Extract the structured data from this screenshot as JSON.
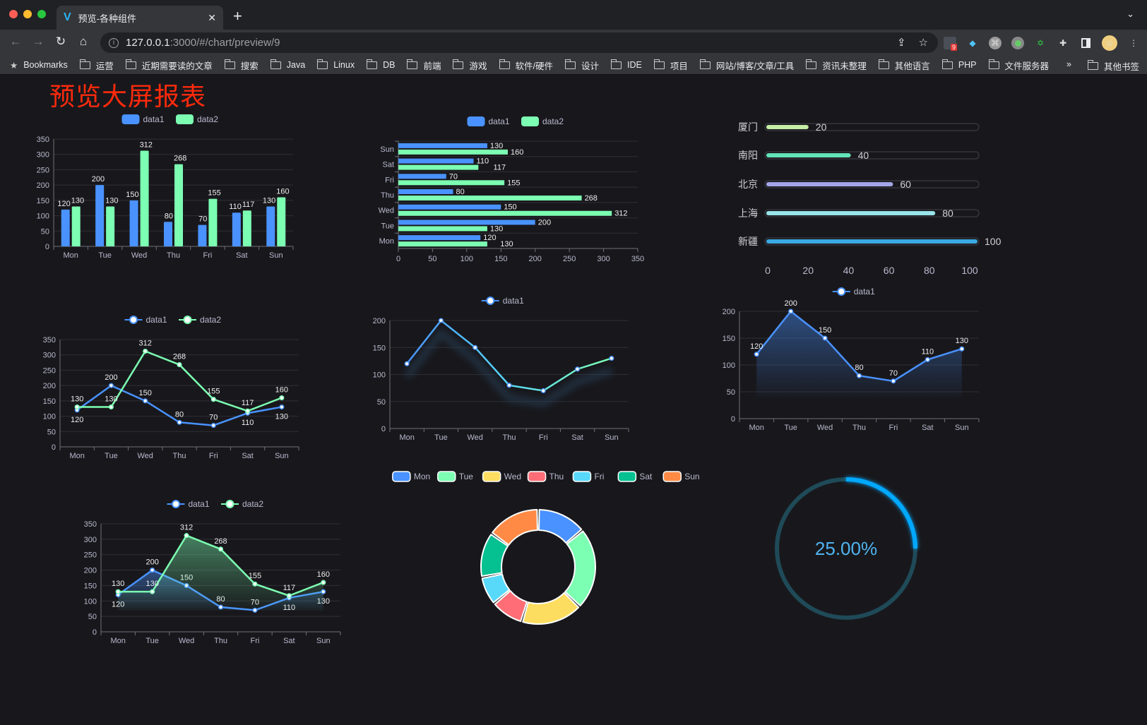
{
  "browser": {
    "tab_title": "预览-各种组件",
    "url_host": "127.0.0.1",
    "url_rest": ":3000/#/chart/preview/9",
    "extension_badge": "9",
    "bookmarks": [
      "Bookmarks",
      "运营",
      "近期需要读的文章",
      "搜索",
      "Java",
      "Linux",
      "DB",
      "前端",
      "游戏",
      "软件/硬件",
      "设计",
      "IDE",
      "项目",
      "网站/博客/文章/工具",
      "资讯未整理",
      "其他语言",
      "PHP",
      "文件服务器"
    ],
    "bookmarks_overflow": "»",
    "other_bookmarks": "其他书签"
  },
  "page": {
    "title": "预览大屏报表"
  },
  "colors": {
    "blue": "#4992ff",
    "green": "#7cffb2",
    "yellow": "#fddd60",
    "red": "#ff6e76",
    "cyan": "#58d9f9",
    "teal": "#05c091",
    "orange": "#ff8a45",
    "title": "#ff2a0c",
    "gauge": "#00a8ff"
  },
  "chart_data": [
    {
      "type": "bar",
      "categories": [
        "Mon",
        "Tue",
        "Wed",
        "Thu",
        "Fri",
        "Sat",
        "Sun"
      ],
      "ylim": [
        0,
        350
      ],
      "ystep": 50,
      "grid": true,
      "legend": "top",
      "series": [
        {
          "name": "data1",
          "values": [
            120,
            200,
            150,
            80,
            70,
            110,
            130
          ]
        },
        {
          "name": "data2",
          "values": [
            130,
            130,
            312,
            268,
            155,
            117,
            160
          ]
        }
      ]
    },
    {
      "type": "bar",
      "orientation": "horizontal",
      "categories": [
        "Mon",
        "Tue",
        "Wed",
        "Thu",
        "Fri",
        "Sat",
        "Sun"
      ],
      "xlim": [
        0,
        350
      ],
      "xstep": 50,
      "grid": true,
      "legend": "top",
      "series": [
        {
          "name": "data1",
          "values": [
            120,
            200,
            150,
            80,
            70,
            110,
            130
          ]
        },
        {
          "name": "data2",
          "values": [
            130,
            130,
            312,
            268,
            155,
            117,
            160
          ]
        }
      ]
    },
    {
      "type": "bar",
      "orientation": "horizontal",
      "style": "progress",
      "categories": [
        "厦门",
        "南阳",
        "北京",
        "上海",
        "新疆"
      ],
      "values": [
        20,
        40,
        60,
        80,
        100
      ],
      "xlim": [
        0,
        100
      ],
      "xticks": [
        0,
        20,
        40,
        60,
        80,
        100
      ],
      "colors": [
        "#c5eea6",
        "#63e3b8",
        "#a3a6e8",
        "#98e4ea",
        "#3aaae2"
      ]
    },
    {
      "type": "line",
      "categories": [
        "Mon",
        "Tue",
        "Wed",
        "Thu",
        "Fri",
        "Sat",
        "Sun"
      ],
      "ylim": [
        0,
        350
      ],
      "ystep": 50,
      "grid": true,
      "legend": "top",
      "series": [
        {
          "name": "data1",
          "values": [
            120,
            200,
            150,
            80,
            70,
            110,
            130
          ]
        },
        {
          "name": "data2",
          "values": [
            130,
            130,
            312,
            268,
            155,
            117,
            160
          ]
        }
      ]
    },
    {
      "type": "line",
      "categories": [
        "Mon",
        "Tue",
        "Wed",
        "Thu",
        "Fri",
        "Sat",
        "Sun"
      ],
      "ylim": [
        0,
        200
      ],
      "ystep": 50,
      "grid": true,
      "legend": "top",
      "gradient_stroke": true,
      "series": [
        {
          "name": "data1",
          "values": [
            120,
            200,
            150,
            80,
            70,
            110,
            130
          ]
        }
      ]
    },
    {
      "type": "area",
      "categories": [
        "Mon",
        "Tue",
        "Wed",
        "Thu",
        "Fri",
        "Sat",
        "Sun"
      ],
      "ylim": [
        0,
        200
      ],
      "ystep": 50,
      "grid": true,
      "legend": "top",
      "series": [
        {
          "name": "data1",
          "values": [
            120,
            200,
            150,
            80,
            70,
            110,
            130
          ]
        }
      ]
    },
    {
      "type": "area",
      "categories": [
        "Mon",
        "Tue",
        "Wed",
        "Thu",
        "Fri",
        "Sat",
        "Sun"
      ],
      "ylim": [
        0,
        350
      ],
      "ystep": 50,
      "grid": true,
      "legend": "top",
      "series": [
        {
          "name": "data1",
          "values": [
            120,
            200,
            150,
            80,
            70,
            110,
            130
          ]
        },
        {
          "name": "data2",
          "values": [
            130,
            130,
            312,
            268,
            155,
            117,
            160
          ]
        }
      ]
    },
    {
      "type": "pie",
      "style": "donut",
      "legend": "top",
      "categories": [
        "Mon",
        "Tue",
        "Wed",
        "Thu",
        "Fri",
        "Sat",
        "Sun"
      ],
      "values": [
        120,
        200,
        150,
        80,
        70,
        110,
        130
      ]
    },
    {
      "type": "gauge",
      "value": 25,
      "label": "25.00%"
    }
  ]
}
